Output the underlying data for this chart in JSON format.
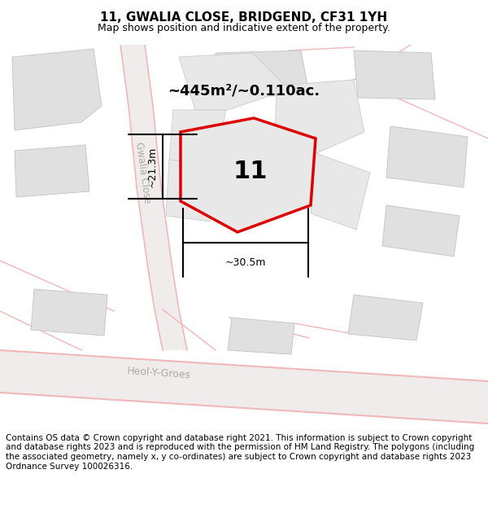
{
  "title": "11, GWALIA CLOSE, BRIDGEND, CF31 1YH",
  "subtitle": "Map shows position and indicative extent of the property.",
  "footer": "Contains OS data © Crown copyright and database right 2021. This information is subject to Crown copyright and database rights 2023 and is reproduced with the permission of HM Land Registry. The polygons (including the associated geometry, namely x, y co-ordinates) are subject to Crown copyright and database rights 2023 Ordnance Survey 100026316.",
  "bg_color": "#f2f0ee",
  "red": "#dd0000",
  "road_color": "#f0b8b8",
  "area_label": "~445m²/~0.110ac.",
  "plot_number": "11",
  "dim_h": "~21.3m",
  "dim_w": "~30.5m",
  "street1": "Gwalia Close",
  "street2": "Heol-Y-Groes",
  "title_fontsize": 11,
  "subtitle_fontsize": 9,
  "footer_fontsize": 7.5,
  "building_fill": "#e0e0e0",
  "building_edge": "#c8c8c8",
  "plot_fill": "#e8e8e8"
}
